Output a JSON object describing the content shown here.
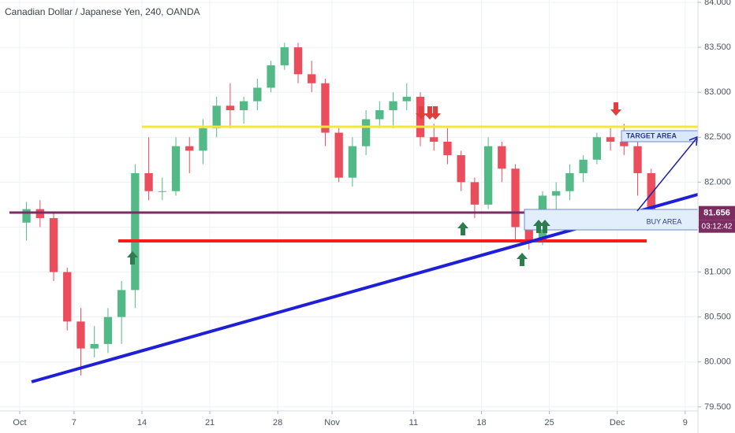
{
  "chart_data": {
    "type": "candlestick",
    "title": "Canadian Dollar / Japanese Yen, 240, OANDA",
    "x": [
      0,
      1,
      2,
      3,
      4,
      5,
      6,
      7,
      8,
      9,
      10,
      11,
      12,
      13,
      14,
      15,
      16,
      17,
      18,
      19,
      20,
      21,
      22,
      23,
      24,
      25,
      26,
      27,
      28,
      29,
      30,
      31,
      32,
      33,
      34,
      35,
      36,
      37,
      38,
      39,
      40,
      41,
      42,
      43,
      44,
      45,
      46
    ],
    "open": [
      81.55,
      81.7,
      81.6,
      81.0,
      80.45,
      80.15,
      80.2,
      80.5,
      80.8,
      82.1,
      81.9,
      81.9,
      82.4,
      82.35,
      82.6,
      82.85,
      82.8,
      82.9,
      83.05,
      83.3,
      83.5,
      83.2,
      83.1,
      82.55,
      82.05,
      82.4,
      82.7,
      82.8,
      82.9,
      82.95,
      82.5,
      82.45,
      82.3,
      82.0,
      81.75,
      82.4,
      82.15,
      81.5,
      81.35,
      81.85,
      81.9,
      82.1,
      82.25,
      82.5,
      82.45,
      82.4,
      82.1
    ],
    "high": [
      81.78,
      81.8,
      81.65,
      81.05,
      80.6,
      80.4,
      80.6,
      80.9,
      82.2,
      82.5,
      82.05,
      82.5,
      82.5,
      82.7,
      82.95,
      83.1,
      82.95,
      83.15,
      83.35,
      83.55,
      83.55,
      83.35,
      83.15,
      82.6,
      82.5,
      82.8,
      82.9,
      83.0,
      83.1,
      83.0,
      82.65,
      82.6,
      82.35,
      82.05,
      82.5,
      82.45,
      82.2,
      81.7,
      81.9,
      82.0,
      82.2,
      82.3,
      82.55,
      82.6,
      82.65,
      82.45,
      82.15
    ],
    "low": [
      81.35,
      81.5,
      80.9,
      80.35,
      79.85,
      80.05,
      80.1,
      80.2,
      80.6,
      81.8,
      81.8,
      81.85,
      82.1,
      82.2,
      82.5,
      82.6,
      82.65,
      82.8,
      83.0,
      83.25,
      83.1,
      83.0,
      82.4,
      82.0,
      81.95,
      82.3,
      82.6,
      82.6,
      82.8,
      82.4,
      82.35,
      82.2,
      81.9,
      81.6,
      81.7,
      82.0,
      81.35,
      81.25,
      81.3,
      81.6,
      81.8,
      82.0,
      82.2,
      82.35,
      82.3,
      81.85,
      81.65
    ],
    "close": [
      81.7,
      81.6,
      81.0,
      80.45,
      80.15,
      80.2,
      80.5,
      80.8,
      82.1,
      81.9,
      81.9,
      82.4,
      82.35,
      82.6,
      82.85,
      82.8,
      82.9,
      83.05,
      83.3,
      83.5,
      83.2,
      83.1,
      82.55,
      82.05,
      82.4,
      82.7,
      82.8,
      82.9,
      82.95,
      82.5,
      82.45,
      82.3,
      82.0,
      81.75,
      82.4,
      82.15,
      81.5,
      81.35,
      81.85,
      81.9,
      82.1,
      82.25,
      82.5,
      82.45,
      82.4,
      82.1,
      81.66
    ],
    "up_color": "#53b987",
    "down_color": "#eb4d5c",
    "xlim": [
      -1.95,
      49.44
    ],
    "xticks": [
      {
        "value": -0.5,
        "label": "Oct"
      },
      {
        "value": 3.5,
        "label": "7"
      },
      {
        "value": 8.5,
        "label": "14"
      },
      {
        "value": 13.5,
        "label": "21"
      },
      {
        "value": 18.5,
        "label": "28"
      },
      {
        "value": 22.5,
        "label": "Nov"
      },
      {
        "value": 28.5,
        "label": "11"
      },
      {
        "value": 33.5,
        "label": "18"
      },
      {
        "value": 38.5,
        "label": "25"
      },
      {
        "value": 43.5,
        "label": "Dec"
      },
      {
        "value": 48.5,
        "label": "9"
      }
    ],
    "ylim": [
      79.455,
      84.026
    ],
    "yticks": [
      {
        "value": 79.5,
        "label": "79.500"
      },
      {
        "value": 80,
        "label": "80.000"
      },
      {
        "value": 80.5,
        "label": "80.500"
      },
      {
        "value": 81,
        "label": "81.000"
      },
      {
        "value": 81.5,
        "label": "81.500"
      },
      {
        "value": 82,
        "label": "82.000"
      },
      {
        "value": 82.5,
        "label": "82.500"
      },
      {
        "value": 83,
        "label": "83.000"
      },
      {
        "value": 83.5,
        "label": "83.500"
      },
      {
        "value": 84,
        "label": "84.000"
      }
    ],
    "grid": true,
    "last_price": 81.656,
    "countdown": "03:12:42",
    "target_label": "TARGET AREA",
    "buy_label": "BUY AREA"
  }
}
